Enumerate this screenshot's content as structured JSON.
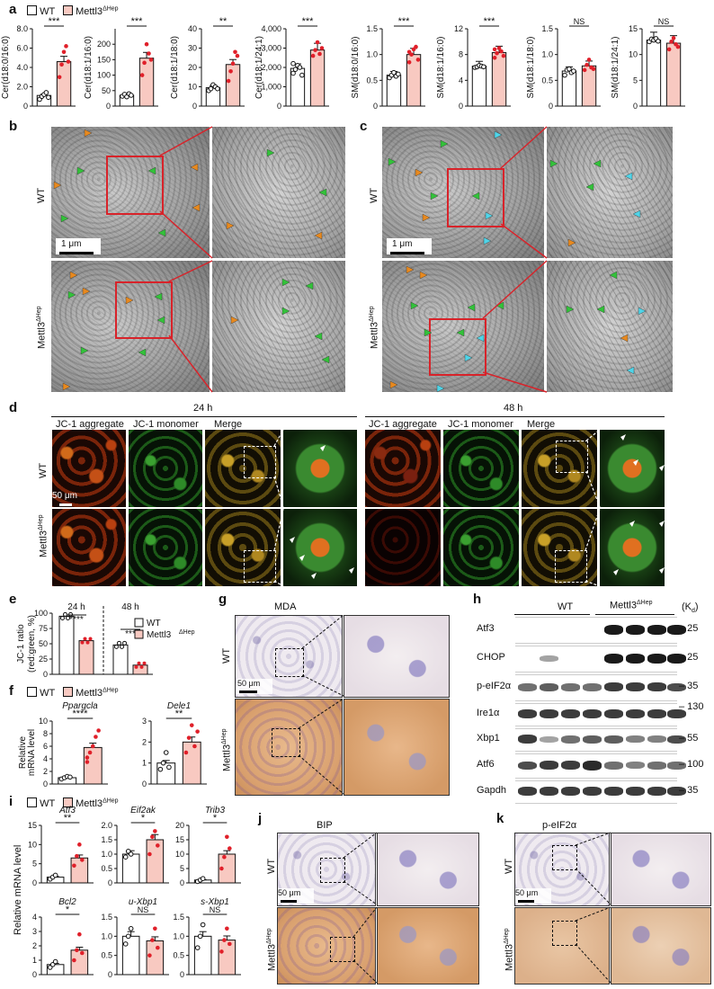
{
  "panels": {
    "a": "a",
    "b": "b",
    "c": "c",
    "d": "d",
    "e": "e",
    "f": "f",
    "g": "g",
    "h": "h",
    "i": "i",
    "j": "j",
    "k": "k"
  },
  "legend": {
    "wt": "WT",
    "ko": "Mettl3",
    "ko_sup": "ΔHep"
  },
  "colors": {
    "wt_fill": "#ffffff",
    "ko_fill": "#f8c9c1",
    "ko_dot": "#e0202a",
    "wt_dot": "#111111"
  },
  "genotype": {
    "wt": "WT",
    "ko": "Mettl3",
    "ko_sup": "ΔHep"
  },
  "em": {
    "scale": "1 μm"
  },
  "d": {
    "t24": "24 h",
    "t48": "48 h",
    "cols": [
      "JC-1 aggregate",
      "JC-1 monomer",
      "Merge"
    ],
    "scale": "50 μm"
  },
  "g": {
    "title": "MDA",
    "scale": "50 μm"
  },
  "j": {
    "title": "BIP",
    "scale": "50 μm"
  },
  "k": {
    "title": "p-eIF2α",
    "scale": "50 μm"
  },
  "h": {
    "kd": "(K",
    "kd_sub": "d",
    "kd_end": ")",
    "labels": [
      "Atf3",
      "CHOP",
      "p-eIF2α",
      "Ire1α",
      "Xbp1",
      "Atf6",
      "Gapdh"
    ],
    "markers": [
      "25",
      "25",
      "35",
      "130",
      "55",
      "100",
      "35"
    ]
  },
  "chart_data": [
    {
      "type": "bar",
      "panel": "a",
      "ylabel": "Cer(d18:0/16:0)",
      "ylim": [
        0,
        8.0
      ],
      "yticks": [
        "0",
        "2.0",
        "4.0",
        "6.0",
        "8.0"
      ],
      "values": [
        1.1,
        4.6
      ],
      "sig": "***",
      "wt": [
        0.7,
        1.0,
        1.2,
        1.4,
        0.9
      ],
      "ko": [
        3.0,
        4.3,
        5.6,
        6.2,
        4.6
      ]
    },
    {
      "type": "bar",
      "panel": "a",
      "ylabel": "Cer(d18:1/16:0)",
      "ylim": [
        0,
        250
      ],
      "yticks": [
        "0",
        "50",
        "100",
        "150",
        "200"
      ],
      "values": [
        35,
        155
      ],
      "sig": "***",
      "wt": [
        32,
        38,
        30,
        40,
        35
      ],
      "ko": [
        100,
        140,
        200,
        170,
        150
      ]
    },
    {
      "type": "bar",
      "panel": "a",
      "ylabel": "Cer(d18:1/18:0)",
      "ylim": [
        0,
        40
      ],
      "yticks": [
        "0",
        "10",
        "20",
        "30",
        "40"
      ],
      "values": [
        9.5,
        21.5
      ],
      "sig": "**",
      "wt": [
        8,
        9,
        11,
        10,
        9
      ],
      "ko": [
        13,
        18,
        22,
        28,
        26
      ]
    },
    {
      "type": "bar",
      "panel": "a",
      "ylabel": "Cer(d18:1/24:1)",
      "ylim": [
        0,
        4000
      ],
      "yticks": [
        "0",
        "1,000",
        "2,000",
        "3,000",
        "4,000"
      ],
      "values": [
        1950,
        2900
      ],
      "sig": "***",
      "wt": [
        1700,
        1900,
        2100,
        2000,
        1600,
        2200
      ],
      "ko": [
        2600,
        2900,
        3300,
        2700,
        3000
      ]
    },
    {
      "type": "bar",
      "panel": "a",
      "ylabel": "SM(d18:0/16:0)",
      "ylim": [
        0,
        1.5
      ],
      "yticks": [
        "0",
        "0.5",
        "1.0",
        "1.5"
      ],
      "values": [
        0.6,
        1.0
      ],
      "sig": "***",
      "wt": [
        0.55,
        0.6,
        0.65,
        0.58,
        0.62
      ],
      "ko": [
        0.85,
        1.0,
        1.1,
        1.15,
        0.9,
        1.05
      ]
    },
    {
      "type": "bar",
      "panel": "a",
      "ylabel": "SM(d18:1/16:0)",
      "ylim": [
        0,
        12
      ],
      "yticks": [
        "0",
        "4",
        "8",
        "12"
      ],
      "values": [
        6.2,
        8.3
      ],
      "sig": "***",
      "wt": [
        6.0,
        6.1,
        6.3,
        6.2,
        6.1
      ],
      "ko": [
        7.5,
        8.2,
        9.0,
        8.5,
        7.8,
        8.8
      ]
    },
    {
      "type": "bar",
      "panel": "a",
      "ylabel": "SM(d18:1/18:0)",
      "ylim": [
        0,
        1.5
      ],
      "yticks": [
        "0",
        "0.5",
        "1.0",
        "1.5"
      ],
      "values": [
        0.68,
        0.78
      ],
      "sig": "NS",
      "wt": [
        0.6,
        0.7,
        0.72,
        0.65,
        0.68
      ],
      "ko": [
        0.7,
        0.8,
        0.9,
        0.75,
        0.72
      ]
    },
    {
      "type": "bar",
      "panel": "a",
      "ylabel": "SM(d18:1/24:1)",
      "ylim": [
        0,
        15
      ],
      "yticks": [
        "0",
        "5",
        "10",
        "15"
      ],
      "values": [
        12.8,
        12.2
      ],
      "sig": "NS",
      "wt": [
        12.5,
        13.0,
        12.8,
        13.1,
        12.6
      ],
      "ko": [
        11.0,
        12.5,
        13.2,
        12.0,
        11.5
      ]
    },
    {
      "type": "bar",
      "panel": "e",
      "ylabel": "JC-1 ratio",
      "ylabel2": "(red:green, %)",
      "ylim": [
        0,
        100
      ],
      "yticks": [
        "0",
        "25",
        "50",
        "75",
        "100"
      ],
      "groups": [
        "24 h",
        "48 h"
      ],
      "values": [
        95,
        55,
        48,
        15
      ],
      "sig": [
        "****",
        "***"
      ]
    },
    {
      "type": "bar",
      "panel": "f",
      "ylabel": "Relative",
      "ylabel2": "mRNA level",
      "title": "Ppargcla",
      "ylim": [
        0,
        10
      ],
      "yticks": [
        "0",
        "2",
        "4",
        "6",
        "8",
        "10"
      ],
      "values": [
        1.0,
        5.8
      ],
      "sig": "****",
      "wt": [
        0.8,
        1.0,
        1.2,
        1.1
      ],
      "ko": [
        3.5,
        5.0,
        6.0,
        7.5,
        8.5,
        4.2
      ]
    },
    {
      "type": "bar",
      "panel": "f",
      "title": "Dele1",
      "ylim": [
        0,
        3
      ],
      "yticks": [
        "0",
        "1",
        "2",
        "3"
      ],
      "values": [
        1.0,
        2.0
      ],
      "sig": "**",
      "wt": [
        0.7,
        1.0,
        1.5,
        0.8
      ],
      "ko": [
        1.5,
        2.2,
        2.8,
        1.8,
        2.5
      ]
    },
    {
      "type": "bar",
      "panel": "i",
      "title": "Atf3",
      "ylim": [
        0,
        15
      ],
      "yticks": [
        "0",
        "5",
        "10",
        "15"
      ],
      "values": [
        1.5,
        6.5
      ],
      "sig": "**",
      "wt": [
        1.0,
        1.5,
        2.0
      ],
      "ko": [
        4.5,
        7.0,
        10.0,
        6.0
      ]
    },
    {
      "type": "bar",
      "panel": "i",
      "title": "Eif2ak",
      "ylim": [
        0,
        2.0
      ],
      "yticks": [
        "0",
        "0.5",
        "1.0",
        "1.5",
        "2.0"
      ],
      "values": [
        1.0,
        1.5
      ],
      "sig": "*",
      "wt": [
        0.9,
        1.1,
        1.0
      ],
      "ko": [
        1.0,
        1.6,
        1.8,
        1.3
      ]
    },
    {
      "type": "bar",
      "panel": "i",
      "title": "Trib3",
      "ylim": [
        0,
        20
      ],
      "yticks": [
        "0",
        "5",
        "10",
        "15",
        "20"
      ],
      "values": [
        1.0,
        10.0
      ],
      "sig": "*",
      "wt": [
        0.5,
        1.0,
        1.5
      ],
      "ko": [
        5.0,
        9.0,
        16.0,
        12.0
      ]
    },
    {
      "type": "bar",
      "panel": "i",
      "title": "Bcl2",
      "ylim": [
        0,
        4
      ],
      "yticks": [
        "0",
        "1",
        "2",
        "3",
        "4"
      ],
      "values": [
        0.7,
        1.7
      ],
      "sig": "*",
      "wt": [
        0.5,
        0.7,
        0.9
      ],
      "ko": [
        1.0,
        1.7,
        2.8,
        1.5
      ]
    },
    {
      "type": "bar",
      "panel": "i",
      "title": "u-Xbp1",
      "ylim": [
        0,
        1.5
      ],
      "yticks": [
        "0",
        "0.5",
        "1.0",
        "1.5"
      ],
      "values": [
        1.0,
        0.88
      ],
      "sig": "NS",
      "wt": [
        0.8,
        1.0,
        1.2
      ],
      "ko": [
        0.5,
        0.9,
        1.2,
        0.7
      ]
    },
    {
      "type": "bar",
      "panel": "i",
      "title": "s-Xbp1",
      "ylim": [
        0,
        1.5
      ],
      "yticks": [
        "0",
        "0.5",
        "1.0",
        "1.5"
      ],
      "values": [
        1.0,
        0.9
      ],
      "sig": "NS",
      "wt": [
        0.7,
        1.0,
        1.3
      ],
      "ko": [
        0.6,
        0.9,
        1.2,
        0.8
      ]
    }
  ],
  "i_ylabel": "Relative mRNA level"
}
